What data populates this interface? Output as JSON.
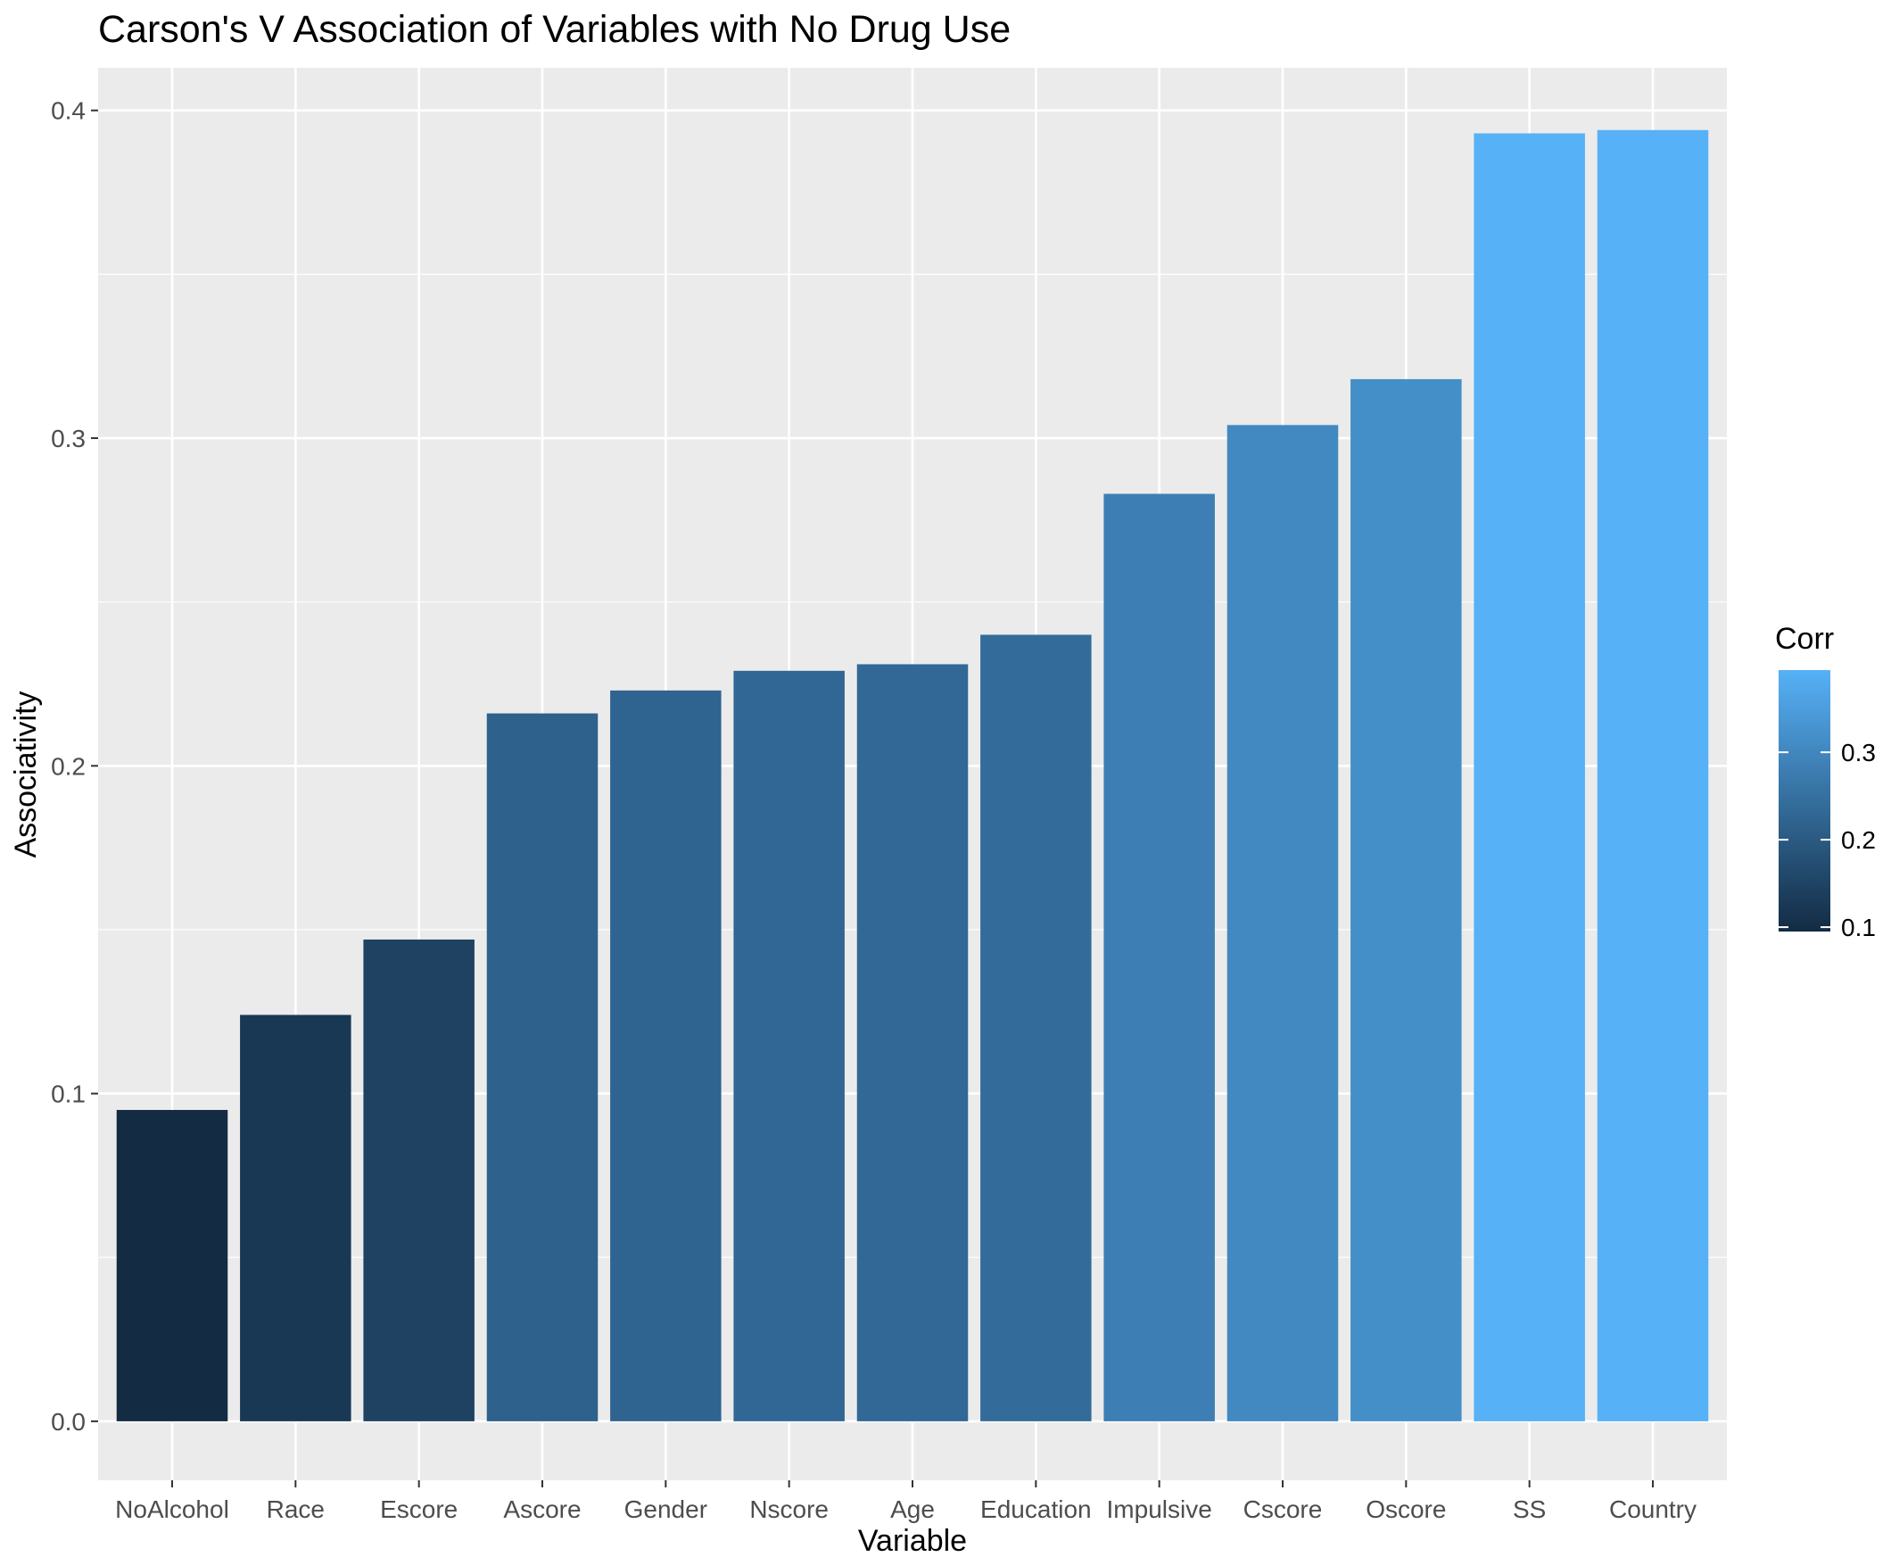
{
  "chart_data": {
    "type": "bar",
    "title": "Carson's V Association of Variables with No Drug Use",
    "xlabel": "Variable",
    "ylabel": "Associativity",
    "categories": [
      "NoAlcohol",
      "Race",
      "Escore",
      "Ascore",
      "Gender",
      "Nscore",
      "Age",
      "Education",
      "Impulsive",
      "Cscore",
      "Oscore",
      "SS",
      "Country"
    ],
    "values": [
      0.095,
      0.124,
      0.147,
      0.216,
      0.223,
      0.229,
      0.231,
      0.24,
      0.283,
      0.304,
      0.318,
      0.393,
      0.394
    ],
    "ylim": [
      -0.018,
      0.413
    ],
    "yticks": [
      0.0,
      0.1,
      0.2,
      0.3,
      0.4
    ],
    "ytick_labels": [
      "0.0",
      "0.1",
      "0.2",
      "0.3",
      "0.4"
    ],
    "grid": true,
    "legend": {
      "title": "Corr",
      "position": "right",
      "type": "colorbar",
      "ticks": [
        0.1,
        0.2,
        0.3
      ],
      "tick_labels": [
        "0.1",
        "0.2",
        "0.3"
      ],
      "range": [
        0.095,
        0.394
      ],
      "color_low": "#132B43",
      "color_high": "#56B1F7"
    },
    "colors": {
      "panel_background": "#EBEBEB",
      "grid_line": "#FFFFFF",
      "low": "#132B43",
      "high": "#56B1F7"
    }
  }
}
